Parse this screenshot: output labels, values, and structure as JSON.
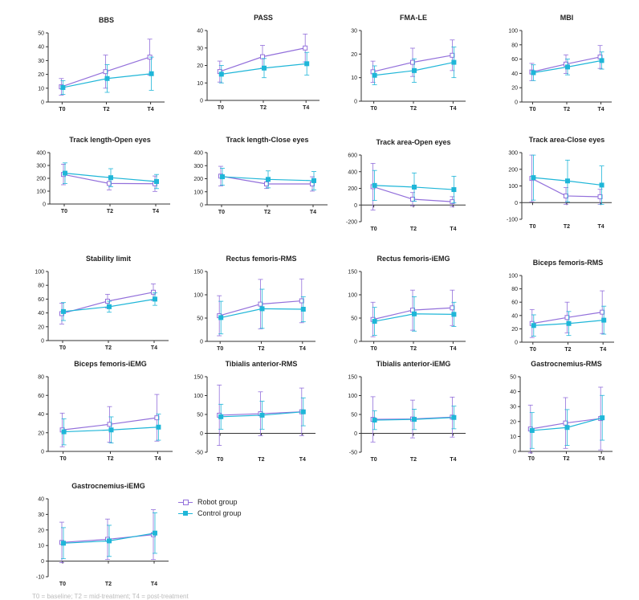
{
  "colors": {
    "robot": "#9370DB",
    "control": "#1FB6D8",
    "axis": "#333333",
    "text": "#222222"
  },
  "legend": {
    "robot": "Robot group",
    "control": "Control group"
  },
  "caption": "T0 = baseline; T2 = mid-treatment; T4 = post-treatment",
  "chart_data": [
    {
      "type": "line",
      "title": "BBS",
      "categories": [
        "T0",
        "T2",
        "T4"
      ],
      "ylim": [
        0,
        50
      ],
      "yticks": [
        0,
        10,
        20,
        30,
        40,
        50
      ],
      "series": [
        {
          "name": "Robot group",
          "values": [
            11,
            22,
            32.5
          ],
          "errors": [
            6,
            12,
            13
          ]
        },
        {
          "name": "Control group",
          "values": [
            10.5,
            17,
            20.5
          ],
          "errors": [
            5,
            10,
            12
          ]
        }
      ]
    },
    {
      "type": "line",
      "title": "PASS",
      "categories": [
        "T0",
        "T2",
        "T4"
      ],
      "ylim": [
        0,
        40
      ],
      "yticks": [
        0,
        10,
        20,
        30,
        40
      ],
      "series": [
        {
          "name": "Robot group",
          "values": [
            16.5,
            25,
            30
          ],
          "errors": [
            6,
            6.5,
            8
          ]
        },
        {
          "name": "Control group",
          "values": [
            15,
            18.5,
            21
          ],
          "errors": [
            5,
            5.5,
            6.5
          ]
        }
      ]
    },
    {
      "type": "line",
      "title": "FMA-LE",
      "categories": [
        "T0",
        "T2",
        "T4"
      ],
      "ylim": [
        0,
        30
      ],
      "yticks": [
        0,
        10,
        20,
        30
      ],
      "series": [
        {
          "name": "Robot group",
          "values": [
            12.5,
            16.5,
            19.5
          ],
          "errors": [
            4.5,
            6,
            6.5
          ]
        },
        {
          "name": "Control group",
          "values": [
            11,
            13,
            16.5
          ],
          "errors": [
            4,
            5,
            6.5
          ]
        }
      ]
    },
    {
      "type": "line",
      "title": "MBI",
      "categories": [
        "T0",
        "T2",
        "T4"
      ],
      "ylim": [
        0,
        100
      ],
      "yticks": [
        0,
        20,
        40,
        60,
        80,
        100
      ],
      "series": [
        {
          "name": "Robot group",
          "values": [
            42,
            53,
            63
          ],
          "errors": [
            12,
            13,
            16
          ]
        },
        {
          "name": "Control group",
          "values": [
            41,
            49,
            58
          ],
          "errors": [
            11,
            11,
            12
          ]
        }
      ]
    },
    {
      "type": "line",
      "title": "Track length-Open eyes",
      "categories": [
        "T0",
        "T2",
        "T4"
      ],
      "ylim": [
        0,
        400
      ],
      "yticks": [
        0,
        100,
        200,
        300,
        400
      ],
      "series": [
        {
          "name": "Robot group",
          "values": [
            230,
            160,
            158
          ],
          "errors": [
            80,
            50,
            60
          ]
        },
        {
          "name": "Control group",
          "values": [
            240,
            205,
            175
          ],
          "errors": [
            80,
            70,
            55
          ]
        }
      ]
    },
    {
      "type": "line",
      "title": "Track length-Close eyes",
      "categories": [
        "T0",
        "T2",
        "T4"
      ],
      "ylim": [
        0,
        400
      ],
      "yticks": [
        0,
        100,
        200,
        300,
        400
      ],
      "series": [
        {
          "name": "Robot group",
          "values": [
            220,
            160,
            160
          ],
          "errors": [
            75,
            35,
            55
          ]
        },
        {
          "name": "Control group",
          "values": [
            215,
            195,
            185
          ],
          "errors": [
            65,
            65,
            70
          ]
        }
      ]
    },
    {
      "type": "line",
      "title": "Track area-Open eyes",
      "categories": [
        "T0",
        "T2",
        "T4"
      ],
      "ylim": [
        -200,
        600
      ],
      "yticks": [
        -200,
        0,
        200,
        400,
        600
      ],
      "series": [
        {
          "name": "Robot group",
          "values": [
            220,
            70,
            40
          ],
          "errors": [
            280,
            80,
            60
          ]
        },
        {
          "name": "Control group",
          "values": [
            235,
            215,
            185
          ],
          "errors": [
            180,
            170,
            160
          ]
        }
      ]
    },
    {
      "type": "line",
      "title": "Track area-Close eyes",
      "categories": [
        "T0",
        "T2",
        "T4"
      ],
      "ylim": [
        -100,
        300
      ],
      "yticks": [
        -100,
        0,
        100,
        200,
        300
      ],
      "series": [
        {
          "name": "Robot group",
          "values": [
            145,
            40,
            35
          ],
          "errors": [
            140,
            50,
            45
          ]
        },
        {
          "name": "Control group",
          "values": [
            150,
            130,
            105
          ],
          "errors": [
            135,
            125,
            115
          ]
        }
      ]
    },
    {
      "type": "line",
      "title": "Stability limit",
      "categories": [
        "T0",
        "T2",
        "T4"
      ],
      "ylim": [
        0,
        100
      ],
      "yticks": [
        0,
        20,
        40,
        60,
        80,
        100
      ],
      "series": [
        {
          "name": "Robot group",
          "values": [
            39,
            57,
            70
          ],
          "errors": [
            15,
            10,
            12
          ]
        },
        {
          "name": "Control group",
          "values": [
            42,
            49,
            60
          ],
          "errors": [
            13,
            8,
            9
          ]
        }
      ]
    },
    {
      "type": "line",
      "title": "Rectus femoris-RMS",
      "categories": [
        "T0",
        "T2",
        "T4"
      ],
      "ylim": [
        0,
        150
      ],
      "yticks": [
        0,
        50,
        100,
        150
      ],
      "series": [
        {
          "name": "Robot group",
          "values": [
            55,
            80,
            87
          ],
          "errors": [
            43,
            53,
            47
          ]
        },
        {
          "name": "Control group",
          "values": [
            51,
            70,
            69
          ],
          "errors": [
            35,
            42,
            27
          ]
        }
      ]
    },
    {
      "type": "line",
      "title": "Rectus femoris-iEMG",
      "categories": [
        "T0",
        "T2",
        "T4"
      ],
      "ylim": [
        0,
        150
      ],
      "yticks": [
        0,
        50,
        100,
        150
      ],
      "series": [
        {
          "name": "Robot group",
          "values": [
            47,
            67,
            72
          ],
          "errors": [
            37,
            43,
            38
          ]
        },
        {
          "name": "Control group",
          "values": [
            43,
            59,
            58
          ],
          "errors": [
            30,
            37,
            26
          ]
        }
      ]
    },
    {
      "type": "line",
      "title": "Biceps femoris-RMS",
      "categories": [
        "T0",
        "T2",
        "T4"
      ],
      "ylim": [
        0,
        100
      ],
      "yticks": [
        0,
        20,
        40,
        60,
        80,
        100
      ],
      "series": [
        {
          "name": "Robot group",
          "values": [
            28,
            37,
            45
          ],
          "errors": [
            21,
            23,
            32
          ]
        },
        {
          "name": "Control group",
          "values": [
            25,
            28,
            33
          ],
          "errors": [
            16,
            18,
            21
          ]
        }
      ]
    },
    {
      "type": "line",
      "title": "Biceps femoris-iEMG",
      "categories": [
        "T0",
        "T2",
        "T4"
      ],
      "ylim": [
        0,
        80
      ],
      "yticks": [
        0,
        20,
        40,
        60,
        80
      ],
      "series": [
        {
          "name": "Robot group",
          "values": [
            23,
            29,
            36
          ],
          "errors": [
            18,
            19,
            25
          ]
        },
        {
          "name": "Control group",
          "values": [
            21,
            23,
            26
          ],
          "errors": [
            14,
            14,
            14
          ]
        }
      ]
    },
    {
      "type": "line",
      "title": "Tibialis anterior-RMS",
      "categories": [
        "T0",
        "T2",
        "T4"
      ],
      "ylim": [
        -50,
        150
      ],
      "yticks": [
        -50,
        0,
        50,
        100,
        150
      ],
      "series": [
        {
          "name": "Robot group",
          "values": [
            48,
            52,
            57
          ],
          "errors": [
            80,
            58,
            63
          ]
        },
        {
          "name": "Control group",
          "values": [
            44,
            48,
            57
          ],
          "errors": [
            33,
            37,
            37
          ]
        }
      ]
    },
    {
      "type": "line",
      "title": "Tibialis anterior-iEMG",
      "categories": [
        "T0",
        "T2",
        "T4"
      ],
      "ylim": [
        -50,
        150
      ],
      "yticks": [
        -50,
        0,
        50,
        100,
        150
      ],
      "series": [
        {
          "name": "Robot group",
          "values": [
            37,
            38,
            43
          ],
          "errors": [
            60,
            50,
            53
          ]
        },
        {
          "name": "Control group",
          "values": [
            35,
            37,
            42
          ],
          "errors": [
            25,
            27,
            30
          ]
        }
      ]
    },
    {
      "type": "line",
      "title": "Gastrocnemius-RMS",
      "categories": [
        "T0",
        "T2",
        "T4"
      ],
      "ylim": [
        0,
        50
      ],
      "yticks": [
        0,
        10,
        20,
        30,
        40,
        50
      ],
      "series": [
        {
          "name": "Robot group",
          "values": [
            15,
            19,
            22
          ],
          "errors": [
            16,
            17,
            21
          ]
        },
        {
          "name": "Control group",
          "values": [
            14,
            16,
            22.5
          ],
          "errors": [
            12,
            12,
            15
          ]
        }
      ]
    },
    {
      "type": "line",
      "title": "Gastrocnemius-iEMG",
      "categories": [
        "T0",
        "T2",
        "T4"
      ],
      "ylim": [
        -10,
        40
      ],
      "yticks": [
        -10,
        0,
        10,
        20,
        30,
        40
      ],
      "series": [
        {
          "name": "Robot group",
          "values": [
            12,
            14,
            17
          ],
          "errors": [
            13,
            13,
            16
          ]
        },
        {
          "name": "Control group",
          "values": [
            11.5,
            13,
            18
          ],
          "errors": [
            10,
            10,
            13
          ]
        }
      ]
    }
  ]
}
